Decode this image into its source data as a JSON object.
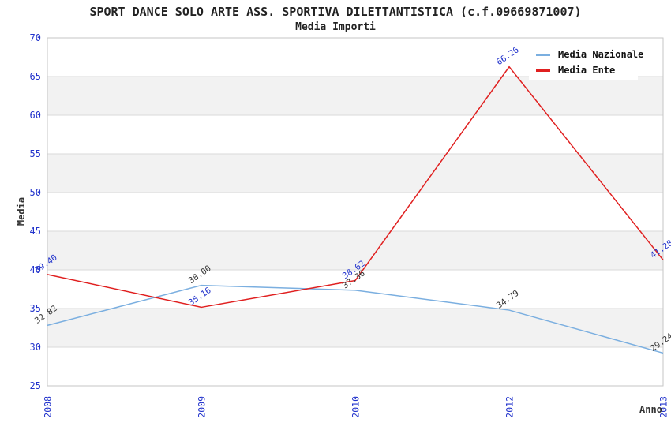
{
  "chart_data": {
    "type": "line",
    "title": "SPORT DANCE SOLO ARTE ASS. SPORTIVA DILETTANTISTICA (c.f.09669871007)",
    "subtitle": "Media Importi",
    "xlabel": "Anno",
    "ylabel": "Media",
    "categories": [
      "2008",
      "2009",
      "2010",
      "2012",
      "2013"
    ],
    "series": [
      {
        "name": "Media Nazionale",
        "color": "#7bafe0",
        "label_color": "#333333",
        "values": [
          32.82,
          38.0,
          37.36,
          34.79,
          29.24
        ]
      },
      {
        "name": "Media Ente",
        "color": "#e02020",
        "label_color": "#2233cc",
        "values": [
          39.4,
          35.16,
          38.62,
          66.26,
          41.28
        ]
      }
    ],
    "ylim": [
      25,
      70
    ],
    "ytick_step": 5,
    "yticks": [
      25,
      30,
      35,
      40,
      45,
      50,
      55,
      60,
      65,
      70
    ],
    "grid": true,
    "band_fill": "#f2f2f2",
    "gridline_color": "#d9d9d9",
    "plot_border_color": "#c6c6c6",
    "axis_label_color": "#2233cc",
    "legend_position": "top-right",
    "value_label_format": "0.00",
    "value_label_rotation_deg": -35
  }
}
